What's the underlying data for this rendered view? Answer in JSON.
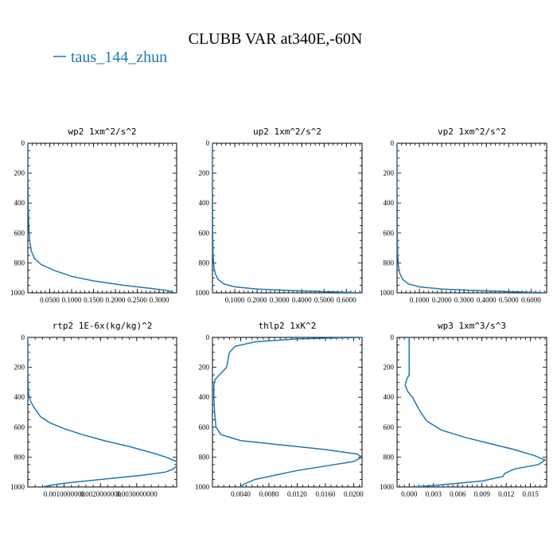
{
  "figure": {
    "title": "CLUBB VAR at340E,-60N",
    "legend": [
      {
        "name": "taus_144_zhun",
        "color": "#1f77b4"
      }
    ]
  },
  "chart_data": [
    {
      "type": "line",
      "title": "wp2   1xm^2/s^2",
      "xlim": [
        0.0,
        0.34
      ],
      "ylim": [
        1000,
        0
      ],
      "xticks": [
        0.05,
        0.1,
        0.15,
        0.2,
        0.25,
        0.3
      ],
      "xtick_labels": [
        "0.0500",
        "0.1000",
        "0.1500",
        "0.2000",
        "0.2500",
        "0.3000"
      ],
      "yticks": [
        0,
        200,
        400,
        600,
        800,
        1000
      ],
      "series": [
        {
          "x": [
            0.0,
            0.0,
            0.001,
            0.002,
            0.004,
            0.008,
            0.015,
            0.03,
            0.06,
            0.1,
            0.15,
            0.22,
            0.28,
            0.32,
            0.335
          ],
          "y": [
            0,
            200,
            400,
            550,
            650,
            720,
            770,
            810,
            850,
            890,
            920,
            950,
            970,
            985,
            1000
          ]
        }
      ]
    },
    {
      "type": "line",
      "title": "up2   1xm^2/s^2",
      "xlim": [
        0.0,
        0.67
      ],
      "ylim": [
        1000,
        0
      ],
      "xticks": [
        0.1,
        0.2,
        0.3,
        0.4,
        0.5,
        0.6
      ],
      "xtick_labels": [
        "0.1000",
        "0.2000",
        "0.3000",
        "0.4000",
        "0.5000",
        "0.6000"
      ],
      "yticks": [
        0,
        200,
        400,
        600,
        800,
        1000
      ],
      "series": [
        {
          "x": [
            0.0,
            0.0,
            0.001,
            0.003,
            0.006,
            0.012,
            0.025,
            0.05,
            0.1,
            0.2,
            0.35,
            0.5,
            0.62,
            0.66
          ],
          "y": [
            0,
            300,
            600,
            750,
            820,
            870,
            910,
            940,
            960,
            975,
            985,
            992,
            997,
            1000
          ]
        }
      ]
    },
    {
      "type": "line",
      "title": "vp2   1xm^2/s^2",
      "xlim": [
        0.0,
        0.67
      ],
      "ylim": [
        1000,
        0
      ],
      "xticks": [
        0.1,
        0.2,
        0.3,
        0.4,
        0.5,
        0.6
      ],
      "xtick_labels": [
        "0.1000",
        "0.2000",
        "0.3000",
        "0.4000",
        "0.5000",
        "0.6000"
      ],
      "yticks": [
        0,
        200,
        400,
        600,
        800,
        1000
      ],
      "series": [
        {
          "x": [
            0.0,
            0.0,
            0.001,
            0.003,
            0.006,
            0.012,
            0.025,
            0.05,
            0.1,
            0.2,
            0.35,
            0.5,
            0.62,
            0.66
          ],
          "y": [
            0,
            300,
            600,
            750,
            820,
            870,
            910,
            940,
            960,
            975,
            985,
            992,
            997,
            1000
          ]
        }
      ]
    },
    {
      "type": "line",
      "title": "rtp2   1E-6x(kg/kg)^2",
      "xlim": [
        0.0,
        0.0041
      ],
      "ylim": [
        1000,
        0
      ],
      "xticks": [
        0.001,
        0.002,
        0.003
      ],
      "xtick_labels": [
        "0.0010000000",
        "0.0020000000",
        "0.0030000000"
      ],
      "yticks": [
        0,
        200,
        400,
        600,
        800,
        1000
      ],
      "series": [
        {
          "x": [
            0.0,
            0.0,
            2e-05,
            8e-05,
            0.0002,
            0.00035,
            0.0006,
            0.001,
            0.0015,
            0.0021,
            0.0028,
            0.0034,
            0.0038,
            0.0041,
            0.0041,
            0.004,
            0.0038,
            0.0032,
            0.0024,
            0.0016,
            0.001,
            0.0006,
            0.0004
          ],
          "y": [
            0,
            250,
            380,
            430,
            480,
            530,
            570,
            610,
            650,
            690,
            730,
            770,
            800,
            830,
            860,
            880,
            900,
            920,
            940,
            960,
            975,
            990,
            1000
          ]
        }
      ]
    },
    {
      "type": "line",
      "title": "thlp2   1xK^2",
      "xlim": [
        0.0,
        0.0212
      ],
      "ylim": [
        1000,
        0
      ],
      "xticks": [
        0.004,
        0.008,
        0.012,
        0.016,
        0.02
      ],
      "xtick_labels": [
        "0.0040",
        "0.0080",
        "0.0120",
        "0.0160",
        "0.0200"
      ],
      "yticks": [
        0,
        200,
        400,
        600,
        800,
        1000
      ],
      "series": [
        {
          "x": [
            0.0212,
            0.012,
            0.006,
            0.0032,
            0.0024,
            0.0022,
            0.002,
            0.0012,
            0.0004,
            0.0002,
            0.0002,
            0.0003,
            0.0005,
            0.0012,
            0.004,
            0.01,
            0.016,
            0.0205,
            0.0212,
            0.02,
            0.016,
            0.012,
            0.009,
            0.006,
            0.0045,
            0.004
          ],
          "y": [
            0,
            10,
            30,
            60,
            100,
            150,
            200,
            240,
            280,
            320,
            400,
            500,
            600,
            650,
            690,
            720,
            750,
            780,
            800,
            830,
            860,
            890,
            920,
            950,
            980,
            1000
          ]
        }
      ]
    },
    {
      "type": "line",
      "title": "wp3   1xm^3/s^3",
      "xlim": [
        -0.0015,
        0.017
      ],
      "ylim": [
        1000,
        0
      ],
      "xticks": [
        0.0,
        0.003,
        0.006,
        0.009,
        0.012,
        0.015
      ],
      "xtick_labels": [
        "0.000",
        "0.003",
        "0.006",
        "0.009",
        "0.012",
        "0.015"
      ],
      "yticks": [
        0,
        200,
        400,
        600,
        800,
        1000
      ],
      "series": [
        {
          "x": [
            0.0,
            0.0,
            0.0,
            -0.0003,
            -0.0005,
            -0.0002,
            0.0004,
            0.0009,
            0.0014,
            0.0022,
            0.004,
            0.007,
            0.01,
            0.013,
            0.0155,
            0.0168,
            0.016,
            0.013,
            0.0118,
            0.0116,
            0.009,
            0.005,
            0.002,
            0.0
          ],
          "y": [
            0,
            200,
            250,
            280,
            320,
            360,
            400,
            450,
            500,
            560,
            620,
            670,
            710,
            750,
            790,
            820,
            850,
            880,
            910,
            930,
            960,
            980,
            995,
            1000
          ]
        }
      ]
    }
  ]
}
